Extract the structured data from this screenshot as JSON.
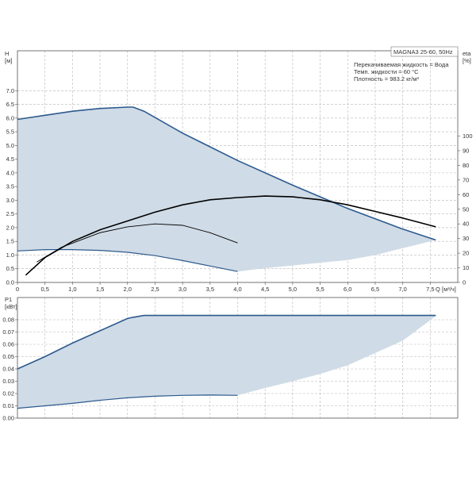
{
  "chart_data": [
    {
      "type": "area",
      "title": "MAGNA3 25-60, 50Hz",
      "ylabel": "H",
      "ylabel_unit": "[м]",
      "y2label": "eta",
      "y2label_unit": "[%]",
      "xlabel": "Q",
      "xlabel_unit": "[м³/ч]",
      "xlim": [
        0,
        8
      ],
      "ylim": [
        0,
        7.5
      ],
      "y2lim": [
        0,
        150
      ],
      "x_ticks": [
        "0",
        "0,5",
        "1,0",
        "1,5",
        "2,0",
        "2,5",
        "3,0",
        "3,5",
        "4,0",
        "4,5",
        "5,0",
        "5,5",
        "6,0",
        "6,5",
        "7,0",
        "7,5"
      ],
      "y_ticks": [
        "0.0",
        "0.5",
        "1.0",
        "1.5",
        "2.0",
        "2.5",
        "3.0",
        "3.5",
        "4.0",
        "4.5",
        "5.0",
        "5.5",
        "6.0",
        "6.5",
        "7.0"
      ],
      "y2_ticks": [
        "0",
        "10",
        "20",
        "30",
        "40",
        "50",
        "60",
        "70",
        "80",
        "90",
        "100"
      ],
      "grid": true,
      "annotations": [
        "Перекачиваемая жидкость = Вода",
        "Темп. жидкости = 60 °C",
        "Плотность = 983.2 кг/м³"
      ],
      "colors": {
        "envelope_fill": "#cfdbe6",
        "envelope_line": "#2d5a8e",
        "efficiency_line": "#000000"
      },
      "series": [
        {
          "kind": "envelope-upper",
          "x": [
            0,
            0.5,
            1.0,
            1.5,
            2.0,
            2.1,
            2.3,
            3.0,
            4.0,
            5.0,
            6.0,
            7.0,
            7.6
          ],
          "values": [
            5.95,
            6.1,
            6.25,
            6.35,
            6.4,
            6.4,
            6.25,
            5.45,
            4.45,
            3.55,
            2.7,
            1.95,
            1.55
          ]
        },
        {
          "kind": "envelope-lower",
          "x": [
            0,
            0.5,
            1.0,
            1.5,
            2.0,
            2.5,
            3.0,
            3.5,
            4.0,
            4.5,
            5.0,
            5.5,
            6.0,
            6.5,
            7.0,
            7.6
          ],
          "values": [
            1.15,
            1.2,
            1.2,
            1.17,
            1.1,
            0.98,
            0.8,
            0.6,
            0.4,
            0.52,
            0.62,
            0.72,
            0.82,
            1.0,
            1.25,
            1.55
          ]
        },
        {
          "kind": "efficiency-max",
          "x": [
            0.15,
            0.5,
            1.0,
            1.5,
            2.0,
            2.5,
            3.0,
            3.5,
            4.0,
            4.5,
            5.0,
            5.5,
            6.0,
            6.5,
            7.0,
            7.6
          ],
          "values": [
            5,
            17,
            28,
            36,
            42,
            48,
            53,
            56.5,
            58,
            59,
            58.5,
            56.5,
            53,
            48.5,
            44,
            38
          ]
        },
        {
          "kind": "efficiency-min",
          "x": [
            0.35,
            0.8,
            1.5,
            2.0,
            2.5,
            3.0,
            3.5,
            4.0
          ],
          "values": [
            14,
            24,
            34,
            38,
            40,
            39,
            34,
            27
          ]
        }
      ]
    },
    {
      "type": "area",
      "ylabel": "P1",
      "ylabel_unit": "[кВт]",
      "xlim": [
        0,
        8
      ],
      "ylim": [
        0,
        0.085
      ],
      "y_ticks": [
        "0.00",
        "0.01",
        "0.02",
        "0.03",
        "0.04",
        "0.05",
        "0.06",
        "0.07",
        "0.08"
      ],
      "grid": true,
      "colors": {
        "envelope_fill": "#cfdbe6",
        "envelope_line": "#2d5a8e"
      },
      "series": [
        {
          "kind": "envelope-upper",
          "x": [
            0,
            0.5,
            1.0,
            1.5,
            2.0,
            2.1,
            2.3,
            3.0,
            4.0,
            5.0,
            6.0,
            7.0,
            7.6
          ],
          "values": [
            0.04,
            0.05,
            0.061,
            0.071,
            0.081,
            0.082,
            0.0835,
            0.0835,
            0.0835,
            0.0835,
            0.0835,
            0.0835,
            0.0835
          ]
        },
        {
          "kind": "envelope-lower",
          "x": [
            0,
            0.5,
            1.0,
            1.5,
            2.0,
            2.5,
            3.0,
            3.5,
            4.0,
            4.5,
            5.0,
            5.5,
            6.0,
            6.5,
            7.0,
            7.6
          ],
          "values": [
            0.008,
            0.01,
            0.012,
            0.0145,
            0.0165,
            0.0178,
            0.0185,
            0.0188,
            0.0185,
            0.0245,
            0.03,
            0.036,
            0.043,
            0.053,
            0.063,
            0.083
          ]
        }
      ]
    }
  ]
}
